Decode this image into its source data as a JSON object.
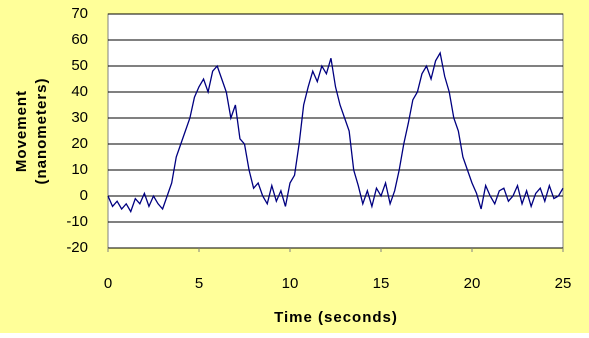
{
  "chart_data": {
    "type": "line",
    "x_label": "Time (seconds)",
    "y_label": [
      "Movement",
      "(nanometers)"
    ],
    "x": [
      0,
      0.25,
      0.5,
      0.75,
      1,
      1.25,
      1.5,
      1.75,
      2,
      2.25,
      2.5,
      2.75,
      3,
      3.25,
      3.5,
      3.75,
      4,
      4.25,
      4.5,
      4.75,
      5,
      5.25,
      5.5,
      5.75,
      6,
      6.25,
      6.5,
      6.75,
      7,
      7.25,
      7.5,
      7.75,
      8,
      8.25,
      8.5,
      8.75,
      9,
      9.25,
      9.5,
      9.75,
      10,
      10.25,
      10.5,
      10.75,
      11,
      11.25,
      11.5,
      11.75,
      12,
      12.25,
      12.5,
      12.75,
      13,
      13.25,
      13.5,
      13.75,
      14,
      14.25,
      14.5,
      14.75,
      15,
      15.25,
      15.5,
      15.75,
      16,
      16.25,
      16.5,
      16.75,
      17,
      17.25,
      17.5,
      17.75,
      18,
      18.25,
      18.5,
      18.75,
      19,
      19.25,
      19.5,
      19.75,
      20,
      20.25,
      20.5,
      20.75,
      21,
      21.25,
      21.5,
      21.75,
      22,
      22.25,
      22.5,
      22.75,
      23,
      23.25,
      23.5,
      23.75,
      24,
      24.25,
      24.5,
      24.75,
      25
    ],
    "series": [
      {
        "color": "#000080",
        "values": [
          0,
          -4,
          -2,
          -5,
          -3,
          -6,
          -1,
          -3,
          1,
          -4,
          0,
          -3,
          -5,
          0,
          5,
          15,
          20,
          25,
          30,
          38,
          42,
          45,
          40,
          48,
          50,
          45,
          40,
          30,
          35,
          22,
          20,
          10,
          3,
          5,
          0,
          -3,
          4,
          -2,
          2,
          -4,
          5,
          8,
          20,
          35,
          42,
          48,
          44,
          50,
          47,
          53,
          42,
          35,
          30,
          25,
          10,
          4,
          -3,
          2,
          -4,
          3,
          0,
          5,
          -3,
          2,
          10,
          20,
          28,
          37,
          40,
          47,
          50,
          45,
          52,
          55,
          46,
          40,
          30,
          25,
          15,
          10,
          5,
          1,
          -5,
          4,
          0,
          -3,
          2,
          3,
          -2,
          0,
          4,
          -3,
          2,
          -4,
          1,
          3,
          -2,
          4,
          -1,
          0,
          3
        ]
      }
    ],
    "xlim": [
      0,
      25
    ],
    "xticks": [
      0,
      5,
      10,
      15,
      20,
      25
    ],
    "ylim": [
      -20,
      70
    ],
    "yticks": [
      -20,
      -10,
      0,
      10,
      20,
      30,
      40,
      50,
      60,
      70
    ],
    "grid": true
  }
}
